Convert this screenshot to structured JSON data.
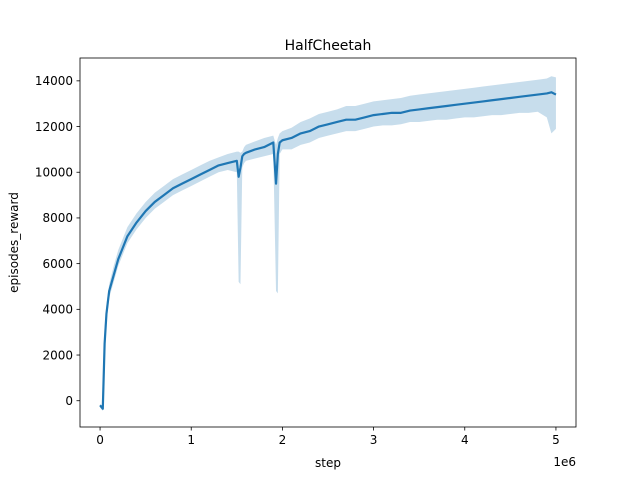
{
  "chart_data": {
    "type": "line",
    "title": "HalfCheetah",
    "xlabel": "step",
    "ylabel": "episodes_reward",
    "x_offset_label": "1e6",
    "xlim": [
      -0.22,
      5.22
    ],
    "ylim": [
      -1150,
      15000
    ],
    "x_ticks": [
      0,
      1,
      2,
      3,
      4,
      5
    ],
    "y_ticks": [
      0,
      2000,
      4000,
      6000,
      8000,
      10000,
      12000,
      14000
    ],
    "grid": false,
    "legend": "none",
    "colors": {
      "line": "#1f77b4",
      "band": "#1f77b4",
      "band_opacity": 0.25
    },
    "series": [
      {
        "x": [
          0.0,
          0.03,
          0.05,
          0.07,
          0.1,
          0.15,
          0.2,
          0.25,
          0.3,
          0.4,
          0.5,
          0.6,
          0.7,
          0.8,
          0.9,
          1.0,
          1.1,
          1.2,
          1.3,
          1.4,
          1.5,
          1.52,
          1.54,
          1.56,
          1.58,
          1.6,
          1.7,
          1.8,
          1.9,
          1.93,
          1.95,
          1.97,
          2.0,
          2.1,
          2.2,
          2.3,
          2.4,
          2.5,
          2.6,
          2.7,
          2.8,
          2.9,
          3.0,
          3.1,
          3.2,
          3.3,
          3.4,
          3.5,
          3.6,
          3.7,
          3.8,
          3.9,
          4.0,
          4.1,
          4.2,
          4.3,
          4.4,
          4.5,
          4.6,
          4.7,
          4.8,
          4.9,
          4.95,
          5.0
        ],
        "mean": [
          -200,
          -350,
          2500,
          3800,
          4800,
          5500,
          6200,
          6700,
          7200,
          7800,
          8300,
          8700,
          9000,
          9300,
          9500,
          9700,
          9900,
          10100,
          10300,
          10400,
          10500,
          9800,
          10200,
          10700,
          10800,
          10850,
          11000,
          11100,
          11300,
          9500,
          10800,
          11300,
          11400,
          11500,
          11700,
          11800,
          12000,
          12100,
          12200,
          12300,
          12300,
          12400,
          12500,
          12550,
          12600,
          12600,
          12700,
          12750,
          12800,
          12850,
          12900,
          12950,
          13000,
          13050,
          13100,
          13150,
          13200,
          13250,
          13300,
          13350,
          13400,
          13450,
          13500,
          13400
        ],
        "lower": [
          -300,
          -450,
          1800,
          3400,
          4500,
          5200,
          5900,
          6400,
          6900,
          7500,
          8000,
          8400,
          8700,
          9000,
          9200,
          9400,
          9600,
          9800,
          10000,
          10100,
          10000,
          5200,
          5100,
          10200,
          10400,
          10500,
          10600,
          10700,
          10800,
          4800,
          4700,
          10800,
          11000,
          11000,
          11200,
          11300,
          11500,
          11600,
          11700,
          11800,
          11800,
          11900,
          12000,
          12050,
          12050,
          12100,
          12200,
          12200,
          12250,
          12300,
          12300,
          12350,
          12400,
          12400,
          12450,
          12500,
          12500,
          12550,
          12600,
          12600,
          12650,
          12400,
          11700,
          11900
        ],
        "upper": [
          -150,
          -250,
          3200,
          4200,
          5100,
          5900,
          6600,
          7100,
          7600,
          8200,
          8700,
          9100,
          9400,
          9700,
          9900,
          10100,
          10300,
          10500,
          10650,
          10800,
          10900,
          10900,
          10850,
          10900,
          11100,
          11200,
          11350,
          11500,
          11600,
          11200,
          11500,
          11700,
          11800,
          11950,
          12200,
          12350,
          12550,
          12650,
          12750,
          12900,
          12900,
          13000,
          13100,
          13150,
          13200,
          13250,
          13350,
          13400,
          13450,
          13500,
          13550,
          13600,
          13650,
          13700,
          13750,
          13800,
          13850,
          13900,
          13950,
          14000,
          14050,
          14100,
          14200,
          14150
        ]
      }
    ]
  }
}
